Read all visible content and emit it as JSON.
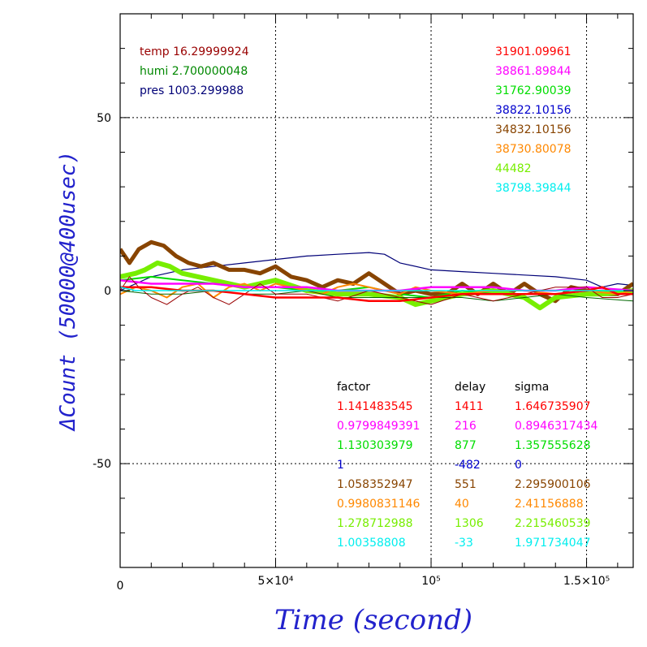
{
  "chart_data": {
    "type": "line",
    "xlabel": "Time (second)",
    "ylabel": "ΔCount (50000@400usec)",
    "xlim": [
      0,
      165000
    ],
    "ylim": [
      -80,
      80
    ],
    "x_ticks": [
      {
        "value": 0,
        "label": "0"
      },
      {
        "value": 50000,
        "label": "5×10⁴"
      },
      {
        "value": 100000,
        "label": "10⁵"
      },
      {
        "value": 150000,
        "label": "1.5×10⁵"
      }
    ],
    "y_ticks": [
      {
        "value": 50,
        "label": "50"
      },
      {
        "value": 0,
        "label": "0"
      },
      {
        "value": -50,
        "label": "-50"
      }
    ],
    "grid": true,
    "env_legend": [
      {
        "text": "temp 16.29999924",
        "color": "#990000"
      },
      {
        "text": "humi 2.700000048",
        "color": "#008800"
      },
      {
        "text": "pres 1003.299988",
        "color": "#000077"
      }
    ],
    "series_values": [
      {
        "text": "31901.09961",
        "color": "#ff0000"
      },
      {
        "text": "38861.89844",
        "color": "#ff00ff"
      },
      {
        "text": "31762.90039",
        "color": "#00dd00"
      },
      {
        "text": "38822.10156",
        "color": "#0000cc"
      },
      {
        "text": "34832.10156",
        "color": "#884400"
      },
      {
        "text": "38730.80078",
        "color": "#ff8800"
      },
      {
        "text": "44482",
        "color": "#77ee00"
      },
      {
        "text": "38798.39844",
        "color": "#00eeee"
      }
    ],
    "table_headers": [
      "factor",
      "delay",
      "sigma"
    ],
    "table_rows": [
      {
        "color": "#ff0000",
        "factor": "1.141483545",
        "delay": "1411",
        "sigma": "1.646735907"
      },
      {
        "color": "#ff00ff",
        "factor": "0.9799849391",
        "delay": "216",
        "sigma": "0.8946317434"
      },
      {
        "color": "#00dd00",
        "factor": "1.130303979",
        "delay": "877",
        "sigma": "1.357555628"
      },
      {
        "color": "#0000cc",
        "factor": "1",
        "delay": "-482",
        "sigma": "0"
      },
      {
        "color": "#884400",
        "factor": "1.058352947",
        "delay": "551",
        "sigma": "2.295900106"
      },
      {
        "color": "#ff8800",
        "factor": "0.9980831146",
        "delay": "40",
        "sigma": "2.41156888"
      },
      {
        "color": "#77ee00",
        "factor": "1.278712988",
        "delay": "1306",
        "sigma": "2.215460539"
      },
      {
        "color": "#00eeee",
        "factor": "1.00358808",
        "delay": "-33",
        "sigma": "1.971734047"
      }
    ],
    "series": [
      {
        "color": "#000077",
        "width": 1.2,
        "x": [
          0,
          5000,
          10000,
          20000,
          30000,
          40000,
          50000,
          60000,
          70000,
          80000,
          85000,
          90000,
          100000,
          110000,
          120000,
          130000,
          140000,
          150000,
          155000,
          160000,
          165000
        ],
        "y": [
          0,
          2,
          4,
          6,
          7,
          8,
          9,
          10,
          10.5,
          11,
          10.5,
          8,
          6,
          5.5,
          5,
          4.5,
          4,
          3,
          1,
          2,
          1.5
        ]
      },
      {
        "color": "#884400",
        "width": 5,
        "x": [
          0,
          3000,
          6000,
          10000,
          14000,
          18000,
          22000,
          26000,
          30000,
          35000,
          40000,
          45000,
          50000,
          55000,
          60000,
          65000,
          70000,
          75000,
          80000,
          85000,
          90000,
          95000,
          100000,
          105000,
          110000,
          115000,
          120000,
          125000,
          130000,
          135000,
          140000,
          145000,
          150000,
          155000,
          160000,
          165000
        ],
        "y": [
          12,
          8,
          12,
          14,
          13,
          10,
          8,
          7,
          8,
          6,
          6,
          5,
          7,
          4,
          3,
          1,
          3,
          2,
          5,
          2,
          -1,
          0,
          -1,
          -1,
          2,
          -1,
          2,
          -1,
          2,
          -1,
          -3,
          1,
          0,
          -1,
          -1,
          2
        ]
      },
      {
        "color": "#77ee00",
        "width": 6,
        "x": [
          0,
          5000,
          8000,
          12000,
          16000,
          20000,
          30000,
          40000,
          50000,
          60000,
          70000,
          80000,
          90000,
          95000,
          100000,
          105000,
          110000,
          120000,
          130000,
          135000,
          140000,
          150000,
          155000,
          165000
        ],
        "y": [
          4,
          5,
          6,
          8,
          7,
          5,
          3,
          1,
          3,
          0,
          -1,
          -1,
          -2,
          -4,
          -3,
          -2,
          -1,
          0,
          -2,
          -5,
          -2,
          -1,
          -1,
          0
        ]
      },
      {
        "color": "#00dd00",
        "width": 2,
        "x": [
          0,
          10000,
          20000,
          30000,
          40000,
          50000,
          60000,
          70000,
          80000,
          90000,
          100000,
          110000,
          120000,
          130000,
          140000,
          150000,
          165000
        ],
        "y": [
          3,
          4,
          3,
          2,
          1,
          1,
          0,
          0,
          1,
          -1,
          -2,
          0,
          -1,
          -1,
          -1,
          0,
          0
        ]
      },
      {
        "color": "#ff8800",
        "width": 2,
        "x": [
          0,
          5000,
          10000,
          15000,
          20000,
          25000,
          30000,
          35000,
          40000,
          45000,
          50000,
          55000,
          60000,
          65000,
          70000,
          75000,
          80000,
          85000,
          90000,
          95000,
          100000,
          110000,
          120000,
          130000,
          140000,
          150000,
          160000,
          165000
        ],
        "y": [
          -1,
          1,
          0,
          -2,
          1,
          2,
          -2,
          1,
          2,
          0,
          2,
          1,
          0,
          -1,
          1,
          2,
          1,
          0,
          -1,
          1,
          0,
          -1,
          0,
          0,
          -1,
          0,
          -1,
          0
        ]
      },
      {
        "color": "#ff00ff",
        "width": 2.5,
        "x": [
          0,
          10000,
          20000,
          30000,
          40000,
          50000,
          60000,
          70000,
          80000,
          90000,
          100000,
          110000,
          120000,
          130000,
          140000,
          150000,
          165000
        ],
        "y": [
          3,
          2,
          2,
          2,
          1,
          1,
          1,
          0,
          0,
          0,
          1,
          1,
          1,
          0,
          0,
          1,
          0
        ]
      },
      {
        "color": "#006600",
        "width": 1,
        "x": [
          0,
          10000,
          20000,
          30000,
          40000,
          50000,
          60000,
          70000,
          80000,
          90000,
          100000,
          110000,
          120000,
          130000,
          140000,
          150000,
          165000
        ],
        "y": [
          0,
          -1,
          -1,
          0,
          -1,
          -1,
          0,
          -2,
          -2,
          -2,
          -2,
          -2,
          -3,
          -2,
          -1,
          -2,
          -3
        ]
      },
      {
        "color": "#990000",
        "width": 1,
        "x": [
          0,
          3000,
          6000,
          10000,
          15000,
          20000,
          25000,
          30000,
          35000,
          40000,
          45000,
          50000,
          60000,
          70000,
          80000,
          90000,
          100000,
          110000,
          120000,
          130000,
          140000,
          150000,
          155000,
          160000,
          165000
        ],
        "y": [
          0,
          4,
          1,
          -2,
          -4,
          -1,
          1,
          -2,
          -4,
          -1,
          2,
          -1,
          -1,
          -3,
          0,
          -2,
          -4,
          -1,
          -3,
          -1,
          1,
          1,
          -2,
          -2,
          -1
        ]
      },
      {
        "color": "#ff0000",
        "width": 2.5,
        "x": [
          0,
          10000,
          20000,
          30000,
          40000,
          50000,
          60000,
          70000,
          80000,
          90000,
          100000,
          110000,
          120000,
          130000,
          140000,
          150000,
          155000,
          160000,
          165000
        ],
        "y": [
          1,
          1,
          0,
          0,
          -1,
          -2,
          -2,
          -2,
          -3,
          -3,
          -2,
          -1,
          -1,
          -1,
          -1,
          0,
          1,
          -1,
          -1
        ]
      },
      {
        "color": "#00eeee",
        "width": 1.5,
        "x": [
          0,
          5000,
          10000,
          20000,
          40000,
          60000,
          80000,
          100000,
          120000,
          140000,
          165000
        ],
        "y": [
          1,
          0,
          0,
          0,
          0,
          0,
          0,
          0,
          0,
          0,
          0
        ]
      }
    ]
  }
}
